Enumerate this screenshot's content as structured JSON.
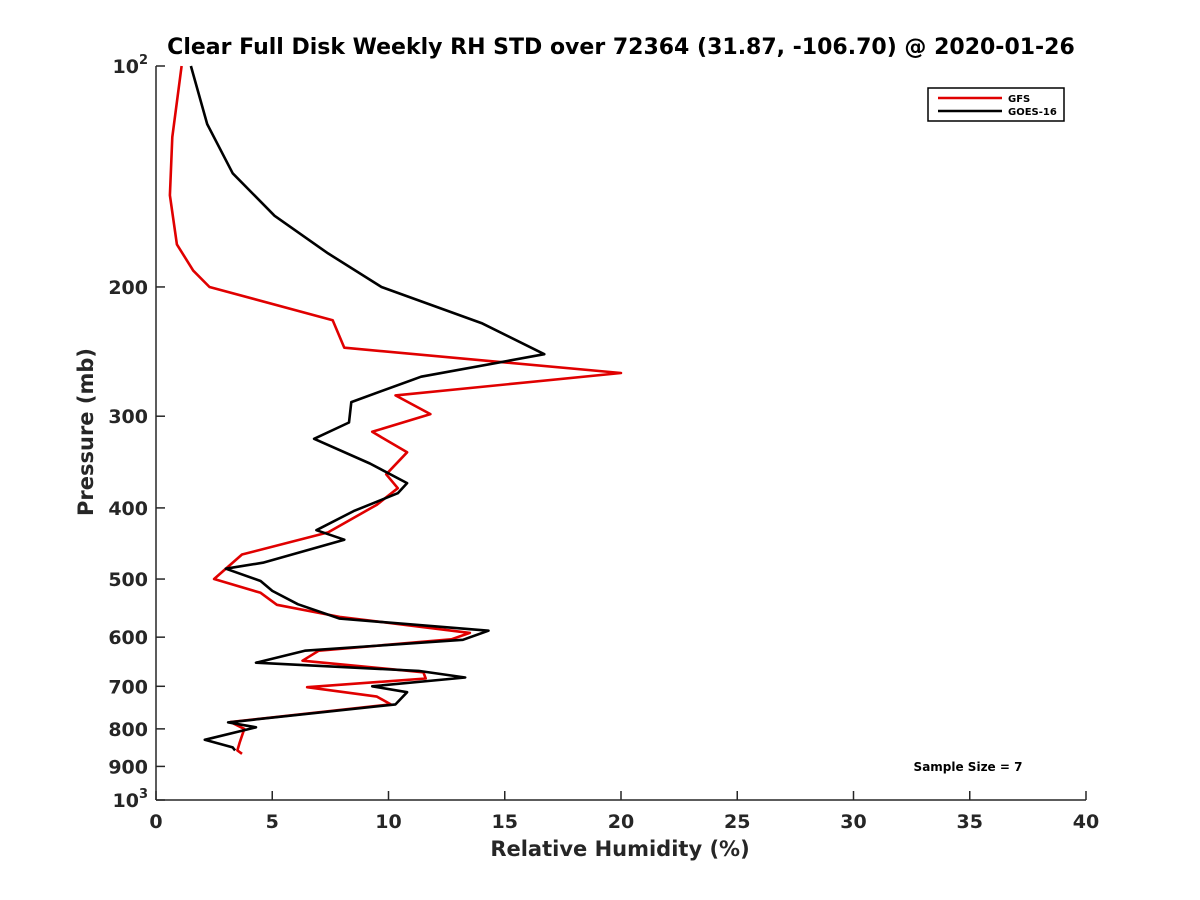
{
  "chart_data": {
    "type": "line",
    "title": "Clear Full Disk Weekly RH STD over 72364 (31.87, -106.70) @ 2020-01-26",
    "xlabel": "Relative Humidity (%)",
    "ylabel": "Pressure (mb)",
    "xlim": [
      0,
      40
    ],
    "ylim": [
      100,
      1000
    ],
    "yscale": "log",
    "y_reversed": true,
    "grid": false,
    "legend_position": "top-right",
    "x_ticks": [
      {
        "value": 0,
        "label": "0"
      },
      {
        "value": 5,
        "label": "5"
      },
      {
        "value": 10,
        "label": "10"
      },
      {
        "value": 15,
        "label": "15"
      },
      {
        "value": 20,
        "label": "20"
      },
      {
        "value": 25,
        "label": "25"
      },
      {
        "value": 30,
        "label": "30"
      },
      {
        "value": 35,
        "label": "35"
      },
      {
        "value": 40,
        "label": "40"
      }
    ],
    "y_ticks": [
      {
        "value": 100,
        "base": "10",
        "exp": "2"
      },
      {
        "value": 200,
        "label": "200"
      },
      {
        "value": 300,
        "label": "300"
      },
      {
        "value": 400,
        "label": "400"
      },
      {
        "value": 500,
        "label": "500"
      },
      {
        "value": 600,
        "label": "600"
      },
      {
        "value": 700,
        "label": "700"
      },
      {
        "value": 800,
        "label": "800"
      },
      {
        "value": 900,
        "label": "900"
      },
      {
        "value": 1000,
        "base": "10",
        "exp": "3"
      }
    ],
    "series": [
      {
        "name": "GFS",
        "color": "#e00000",
        "points": [
          [
            1.1,
            100
          ],
          [
            0.7,
            125
          ],
          [
            0.6,
            150
          ],
          [
            0.9,
            175
          ],
          [
            1.6,
            190
          ],
          [
            2.3,
            200
          ],
          [
            7.6,
            222
          ],
          [
            8.1,
            242
          ],
          [
            20.0,
            262
          ],
          [
            10.3,
            281
          ],
          [
            11.8,
            298
          ],
          [
            9.3,
            315
          ],
          [
            10.8,
            336
          ],
          [
            9.9,
            360
          ],
          [
            10.4,
            376
          ],
          [
            9.5,
            396
          ],
          [
            7.4,
            432
          ],
          [
            3.7,
            463
          ],
          [
            2.5,
            500
          ],
          [
            4.5,
            522
          ],
          [
            5.2,
            542
          ],
          [
            7.9,
            563
          ],
          [
            13.5,
            592
          ],
          [
            12.7,
            604
          ],
          [
            7.0,
            626
          ],
          [
            6.3,
            646
          ],
          [
            11.5,
            670
          ],
          [
            11.6,
            683
          ],
          [
            6.5,
            702
          ],
          [
            9.5,
            723
          ],
          [
            10.1,
            741
          ],
          [
            3.2,
            783
          ],
          [
            3.8,
            800
          ],
          [
            3.6,
            835
          ],
          [
            3.5,
            856
          ],
          [
            3.7,
            865
          ]
        ]
      },
      {
        "name": "GOES-16",
        "color": "#000000",
        "points": [
          [
            1.5,
            100
          ],
          [
            2.2,
            120
          ],
          [
            3.3,
            140
          ],
          [
            5.1,
            160
          ],
          [
            7.4,
            180
          ],
          [
            9.7,
            200
          ],
          [
            14.0,
            224
          ],
          [
            16.7,
            247
          ],
          [
            11.4,
            265
          ],
          [
            8.4,
            287
          ],
          [
            8.3,
            306
          ],
          [
            6.8,
            322
          ],
          [
            9.2,
            348
          ],
          [
            10.8,
            370
          ],
          [
            10.4,
            382
          ],
          [
            8.5,
            404
          ],
          [
            6.9,
            429
          ],
          [
            8.1,
            442
          ],
          [
            4.6,
            475
          ],
          [
            3.0,
            484
          ],
          [
            4.5,
            503
          ],
          [
            5.0,
            519
          ],
          [
            6.1,
            541
          ],
          [
            7.9,
            566
          ],
          [
            14.3,
            588
          ],
          [
            13.2,
            605
          ],
          [
            6.4,
            626
          ],
          [
            4.3,
            650
          ],
          [
            11.3,
            667
          ],
          [
            13.3,
            681
          ],
          [
            9.3,
            700
          ],
          [
            10.8,
            713
          ],
          [
            10.3,
            741
          ],
          [
            3.1,
            784
          ],
          [
            4.3,
            796
          ],
          [
            2.1,
            828
          ],
          [
            3.3,
            848
          ],
          [
            3.4,
            856
          ]
        ]
      }
    ],
    "annotation": "Sample Size = 7"
  }
}
